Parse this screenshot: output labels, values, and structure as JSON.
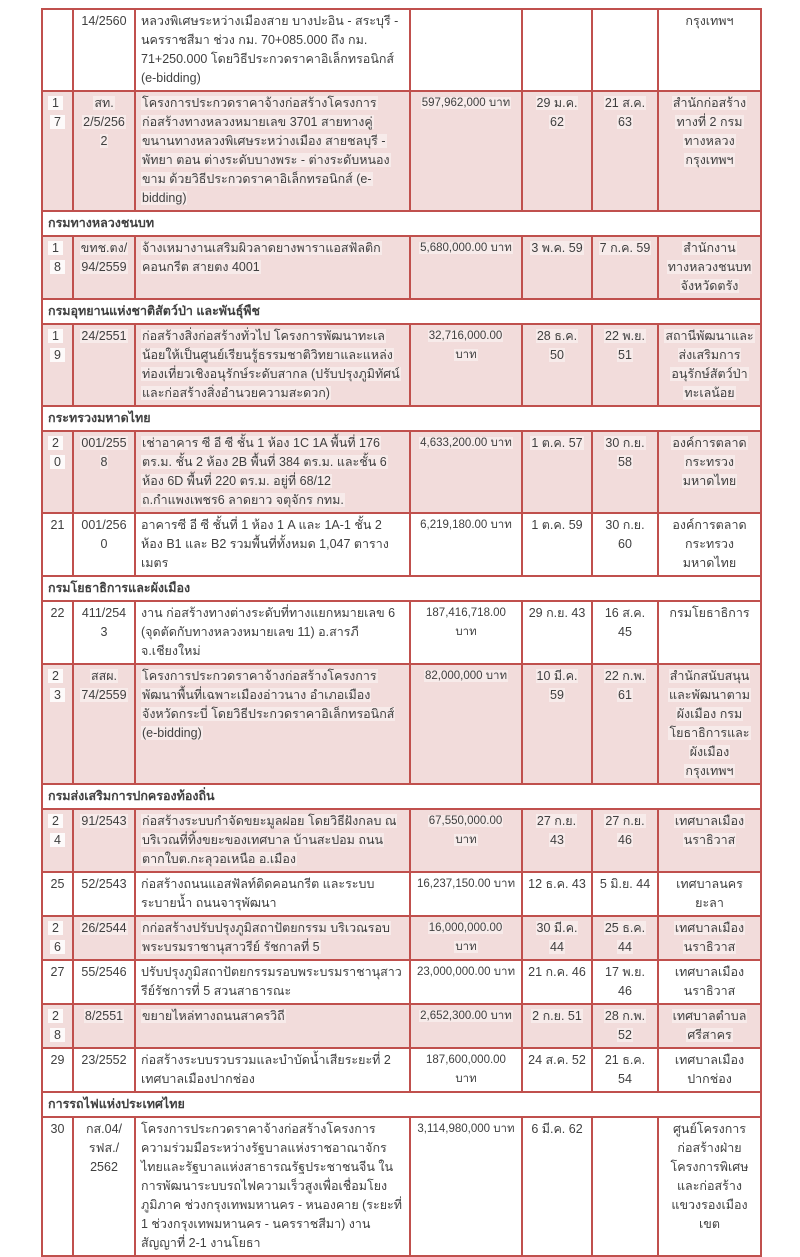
{
  "colors": {
    "border": "#c0504d",
    "row_shade": "#f2dcdb",
    "text": "#3f3f3f",
    "section_text": "#1a1a1a"
  },
  "currency_word": "บาท",
  "table": {
    "rows": [
      {
        "type": "data",
        "no": "",
        "doc": "14/2560",
        "desc": "หลวงพิเศษระหว่างเมืองสาย บางปะอิน - สระบุรี - นครราชสีมา ช่วง กม. 70+085.000 ถึง กม. 71+250.000 โดยวิธีประกวดราคาอิเล็กทรอนิกส์ (e-bidding)",
        "amount": "",
        "start": "",
        "end": "",
        "org": "กรุงเทพฯ",
        "shaded": false
      },
      {
        "type": "data",
        "no": "17",
        "doc": "สท. 2/5/2562",
        "desc": "โครงการประกวดราคาจ้างก่อสร้างโครงการก่อสร้างทางหลวงหมายเลข 3701 สายทางคู่ขนานทางหลวงพิเศษระหว่างเมือง สายชลบุรี - พัทยา ตอน ต่างระดับบางพระ - ต่างระดับหนองขาม ด้วยวิธีประกวดราคาอิเล็กทรอนิกส์ (e-bidding)",
        "amount": "597,962,000 บาท",
        "start": "29 ม.ค. 62",
        "end": "21 ส.ค. 63",
        "org": "สำนักก่อสร้างทางที่ 2 กรมทางหลวง กรุงเทพฯ",
        "shaded": true
      },
      {
        "type": "section",
        "title": "กรมทางหลวงชนบท"
      },
      {
        "type": "data",
        "no": "18",
        "doc": "ขทช.ตง/ 94/2559",
        "desc": "จ้างเหมางานเสริมผิวลาดยางพาราแอสฟัลติกคอนกรีต สายตง 4001",
        "amount": "5,680,000.00 บาท",
        "start": "3 พ.ค. 59",
        "end": "7 ก.ค. 59",
        "org": "สำนักงานทางหลวงชนบทจังหวัดตรัง",
        "shaded": true
      },
      {
        "type": "section",
        "title": "กรมอุทยานแห่งชาติสัตว์ป่า และพันธุ์พืช"
      },
      {
        "type": "data",
        "no": "19",
        "doc": "24/2551",
        "desc": "ก่อสร้างสิ่งก่อสร้างทั่วไป โครงการพัฒนาทะเลน้อยให้เป็นศูนย์เรียนรู้ธรรมชาติวิทยาและแหล่งท่องเที่ยวเชิงอนุรักษ์ระดับสากล (ปรับปรุงภูมิทัศน์และก่อสร้างสิ่งอำนวยความสะดวก)",
        "amount": "32,716,000.00 บาท",
        "start": "28 ธ.ค. 50",
        "end": "22 พ.ย. 51",
        "org": "สถานีพัฒนาและส่งเสริมการอนุรักษ์สัตว์ป่าทะเลน้อย",
        "shaded": true
      },
      {
        "type": "section",
        "title": "กระทรวงมหาดไทย"
      },
      {
        "type": "data",
        "no": "20",
        "doc": "001/2558",
        "desc": "เช่าอาคาร ซี อี ซี ชั้น 1 ห้อง 1C 1A พื้นที่ 176 ตร.ม. ชั้น 2 ห้อง 2B พื้นที่ 384 ตร.ม. และชั้น 6 ห้อง 6D พื้นที่ 220 ตร.ม. อยู่ที่ 68/12 ถ.กำแพงเพชร6 ลาดยาว จตุจักร กทม.",
        "amount": "4,633,200.00 บาท",
        "start": "1 ต.ค. 57",
        "end": "30 ก.ย. 58",
        "org": "องค์การตลาด กระทรวงมหาดไทย",
        "shaded": true
      },
      {
        "type": "data",
        "no": "21",
        "doc": "001/2560",
        "desc": "อาคารซี อี ซี ชั้นที่ 1 ห้อง 1 A และ 1A-1 ชั้น 2 ห้อง B1 และ B2 รวมพื้นที่ทั้งหมด 1,047 ตารางเมตร",
        "amount": "6,219,180.00 บาท",
        "start": "1 ต.ค. 59",
        "end": "30 ก.ย. 60",
        "org": "องค์การตลาด กระทรวงมหาดไทย",
        "shaded": false
      },
      {
        "type": "section",
        "title": "กรมโยธาธิการและผังเมือง"
      },
      {
        "type": "data",
        "no": "22",
        "doc": "411/2543",
        "desc": "งาน ก่อสร้างทางต่างระดับที่ทางแยกหมายเลข 6 (จุดตัดกับทางหลวงหมายเลข 11) อ.สารภี จ.เชียงใหม่",
        "amount": "187,416,718.00 บาท",
        "start": "29 ก.ย. 43",
        "end": "16 ส.ค. 45",
        "org": "กรมโยธาธิการ",
        "shaded": false
      },
      {
        "type": "data",
        "no": "23",
        "doc": "สสผ. 74/2559",
        "desc": "โครงการประกวดราคาจ้างก่อสร้างโครงการพัฒนาพื้นที่เฉพาะเมืองอ่าวนาง อำเภอเมือง จังหวัดกระบี่ โดยวิธีประกวดราคาอิเล็กทรอนิกส์ (e-bidding)",
        "amount": "82,000,000 บาท",
        "start": "10 มี.ค. 59",
        "end": "22 ก.พ. 61",
        "org": "สำนักสนับสนุนและพัฒนาตามผังเมือง กรมโยธาธิการและผังเมือง กรุงเทพฯ",
        "shaded": true
      },
      {
        "type": "section",
        "title": "กรมส่งเสริมการปกครองท้องถิ่น"
      },
      {
        "type": "data",
        "no": "24",
        "doc": "91/2543",
        "desc": "ก่อสร้างระบบกำจัดขยะมูลฝอย โดยวิธีฝังกลบ ณ บริเวณที่ทิ้งขยะของเทศบาล บ้านสะปอม ถนนตากใบต.กะลุวอเหนือ อ.เมือง",
        "amount": "67,550,000.00 บาท",
        "start": "27 ก.ย. 43",
        "end": "27 ก.ย. 46",
        "org": "เทศบาลเมืองนราธิวาส",
        "shaded": true
      },
      {
        "type": "data",
        "no": "25",
        "doc": "52/2543",
        "desc": "ก่อสร้างถนนแอสฟัลท์ติดคอนกรีต และระบบระบายน้ำ ถนนจารุพัฒนา",
        "amount": "16,237,150.00 บาท",
        "start": "12 ธ.ค. 43",
        "end": "5 มิ.ย. 44",
        "org": "เทศบาลนครยะลา",
        "shaded": false
      },
      {
        "type": "data",
        "no": "26",
        "doc": "26/2544",
        "desc": "กก่อสร้างปรับปรุงภูมิสถาปัตยกรรม บริเวณรอบพระบรมราชานุสาวรีย์ รัชกาลที่ 5",
        "amount": "16,000,000.00 บาท",
        "start": "30 มี.ค. 44",
        "end": "25 ธ.ค. 44",
        "org": "เทศบาลเมืองนราธิวาส",
        "shaded": true
      },
      {
        "type": "data",
        "no": "27",
        "doc": "55/2546",
        "desc": "ปรับปรุงภูมิสถาปัตยกรรมรอบพระบรมราชานุสาวรีย์รัชการที่ 5 สวนสาธารณะ",
        "amount": "23,000,000.00 บาท",
        "start": "21 ก.ค. 46",
        "end": "17 พ.ย. 46",
        "org": "เทศบาลเมืองนราธิวาส",
        "shaded": false
      },
      {
        "type": "data",
        "no": "28",
        "doc": "8/2551",
        "desc": "ขยายไหล่ทางถนนสาครวิถี",
        "amount": "2,652,300.00 บาท",
        "start": "2 ก.ย. 51",
        "end": "28 ก.พ. 52",
        "org": "เทศบาลตำบลศรีสาคร",
        "shaded": true
      },
      {
        "type": "data",
        "no": "29",
        "doc": "23/2552",
        "desc": "ก่อสร้างระบบรวบรวมและบำบัดน้ำเสียระยะที่ 2 เทศบาลเมืองปากช่อง",
        "amount": "187,600,000.00 บาท",
        "start": "24 ส.ค. 52",
        "end": "21 ธ.ค. 54",
        "org": "เทศบาลเมืองปากช่อง",
        "shaded": false
      },
      {
        "type": "section",
        "title": "การรถไฟแห่งประเทศไทย"
      },
      {
        "type": "data",
        "no": "30",
        "doc": "กส.04/ รฟส./ 2562",
        "desc": "โครงการประกวดราคาจ้างก่อสร้างโครงการความร่วมมือระหว่างรัฐบาลแห่งราชอาณาจักรไทยและรัฐบาลแห่งสาธารณรัฐประชาชนจีน ในการพัฒนาระบบรถไฟความเร็วสูงเพื่อเชื่อมโยงภูมิภาค ช่วงกรุงเทพมหานคร - หนองคาย (ระยะที่ 1 ช่วงกรุงเทพมหานคร - นครราชสีมา) งานสัญญาที่ 2-1 งานโยธา",
        "amount": "3,114,980,000 บาท",
        "start": "6 มี.ค. 62",
        "end": "",
        "org": "ศูนย์โครงการก่อสร้างฝ่ายโครงการพิเศษและก่อสร้าง แขวงรองเมือง เขต",
        "shaded": false
      }
    ]
  }
}
